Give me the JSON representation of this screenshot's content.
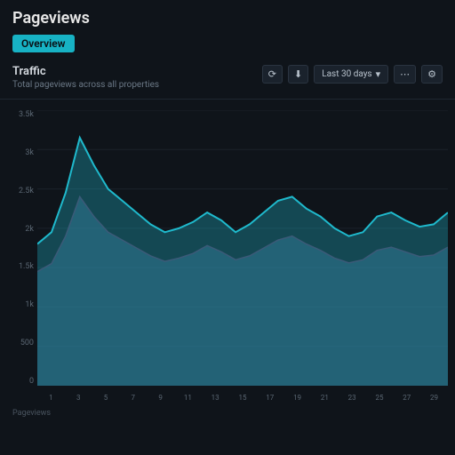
{
  "colors": {
    "accent": "#17b2c4",
    "series1_stroke": "#1fb9cc",
    "series1_fill": "#1fb9cc",
    "series1_fill_opacity": 0.32,
    "series2_stroke": "#3b5a78",
    "series2_fill": "#3b5a78",
    "series2_fill_opacity": 0.55,
    "bg": "#0f141a",
    "grid": "#1b222b"
  },
  "header": {
    "title": "Pageviews",
    "tabs": [
      {
        "label": "Overview",
        "active": true
      }
    ]
  },
  "controls": {
    "subtitle": "Traffic",
    "subdesc": "Total pageviews across all properties",
    "refresh_icon": "⟳",
    "download_icon": "⬇",
    "range_label": "Last 30 days",
    "chevron": "▾",
    "menu_icon": "⋯",
    "settings_icon": "⚙"
  },
  "chart": {
    "type": "area",
    "ylim": [
      0,
      3500
    ],
    "yticks": [
      "3.5k",
      "3k",
      "2.5k",
      "2k",
      "1.5k",
      "1k",
      "500",
      "0"
    ],
    "xticks": [
      "1",
      "3",
      "5",
      "7",
      "9",
      "11",
      "13",
      "15",
      "17",
      "19",
      "21",
      "23",
      "25",
      "27",
      "29"
    ],
    "series1": [
      1800,
      1950,
      2450,
      3150,
      2800,
      2500,
      2350,
      2200,
      2050,
      1950,
      2000,
      2080,
      2200,
      2100,
      1950,
      2050,
      2200,
      2350,
      2400,
      2250,
      2150,
      2000,
      1900,
      1950,
      2150,
      2200,
      2100,
      2020,
      2050,
      2200
    ],
    "series2": [
      1450,
      1550,
      1900,
      2400,
      2150,
      1950,
      1850,
      1750,
      1650,
      1580,
      1620,
      1680,
      1780,
      1700,
      1600,
      1650,
      1750,
      1850,
      1900,
      1800,
      1720,
      1620,
      1560,
      1600,
      1720,
      1760,
      1700,
      1640,
      1660,
      1760
    ]
  },
  "footer": {
    "hint": "Pageviews"
  }
}
